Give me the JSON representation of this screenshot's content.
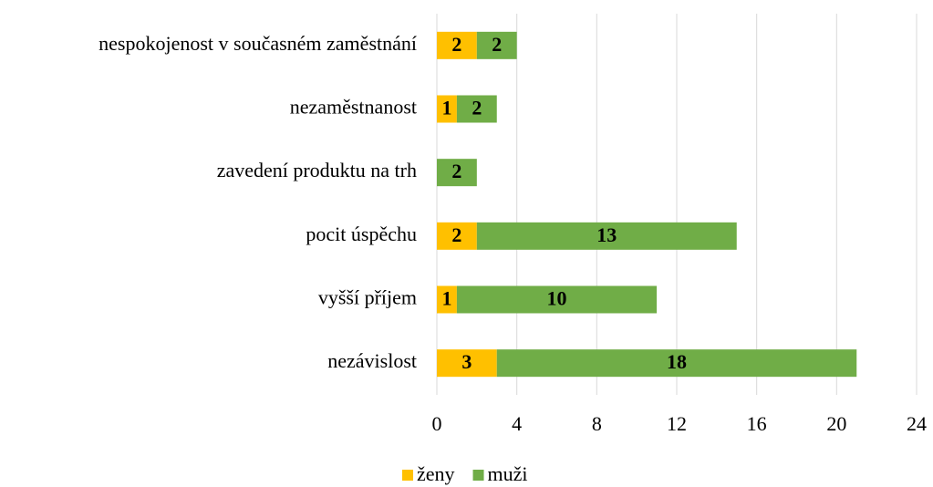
{
  "chart_data": {
    "type": "stacked_bar_horizontal",
    "categories": [
      "nespokojenost v současném zaměstnání",
      "nezaměstnanost",
      "zavedení produktu na trh",
      "pocit úspěchu",
      "vyšší příjem",
      "nezávislost"
    ],
    "series": [
      {
        "name": "ženy",
        "color": "#ffc000",
        "values": [
          2,
          1,
          null,
          2,
          1,
          3
        ]
      },
      {
        "name": "muži",
        "color": "#70ad47",
        "values": [
          2,
          2,
          2,
          13,
          10,
          18
        ]
      }
    ],
    "xlim": [
      0,
      24
    ],
    "xticks": [
      0,
      4,
      8,
      12,
      16,
      20,
      24
    ],
    "grid": true,
    "legend": "bottom"
  }
}
